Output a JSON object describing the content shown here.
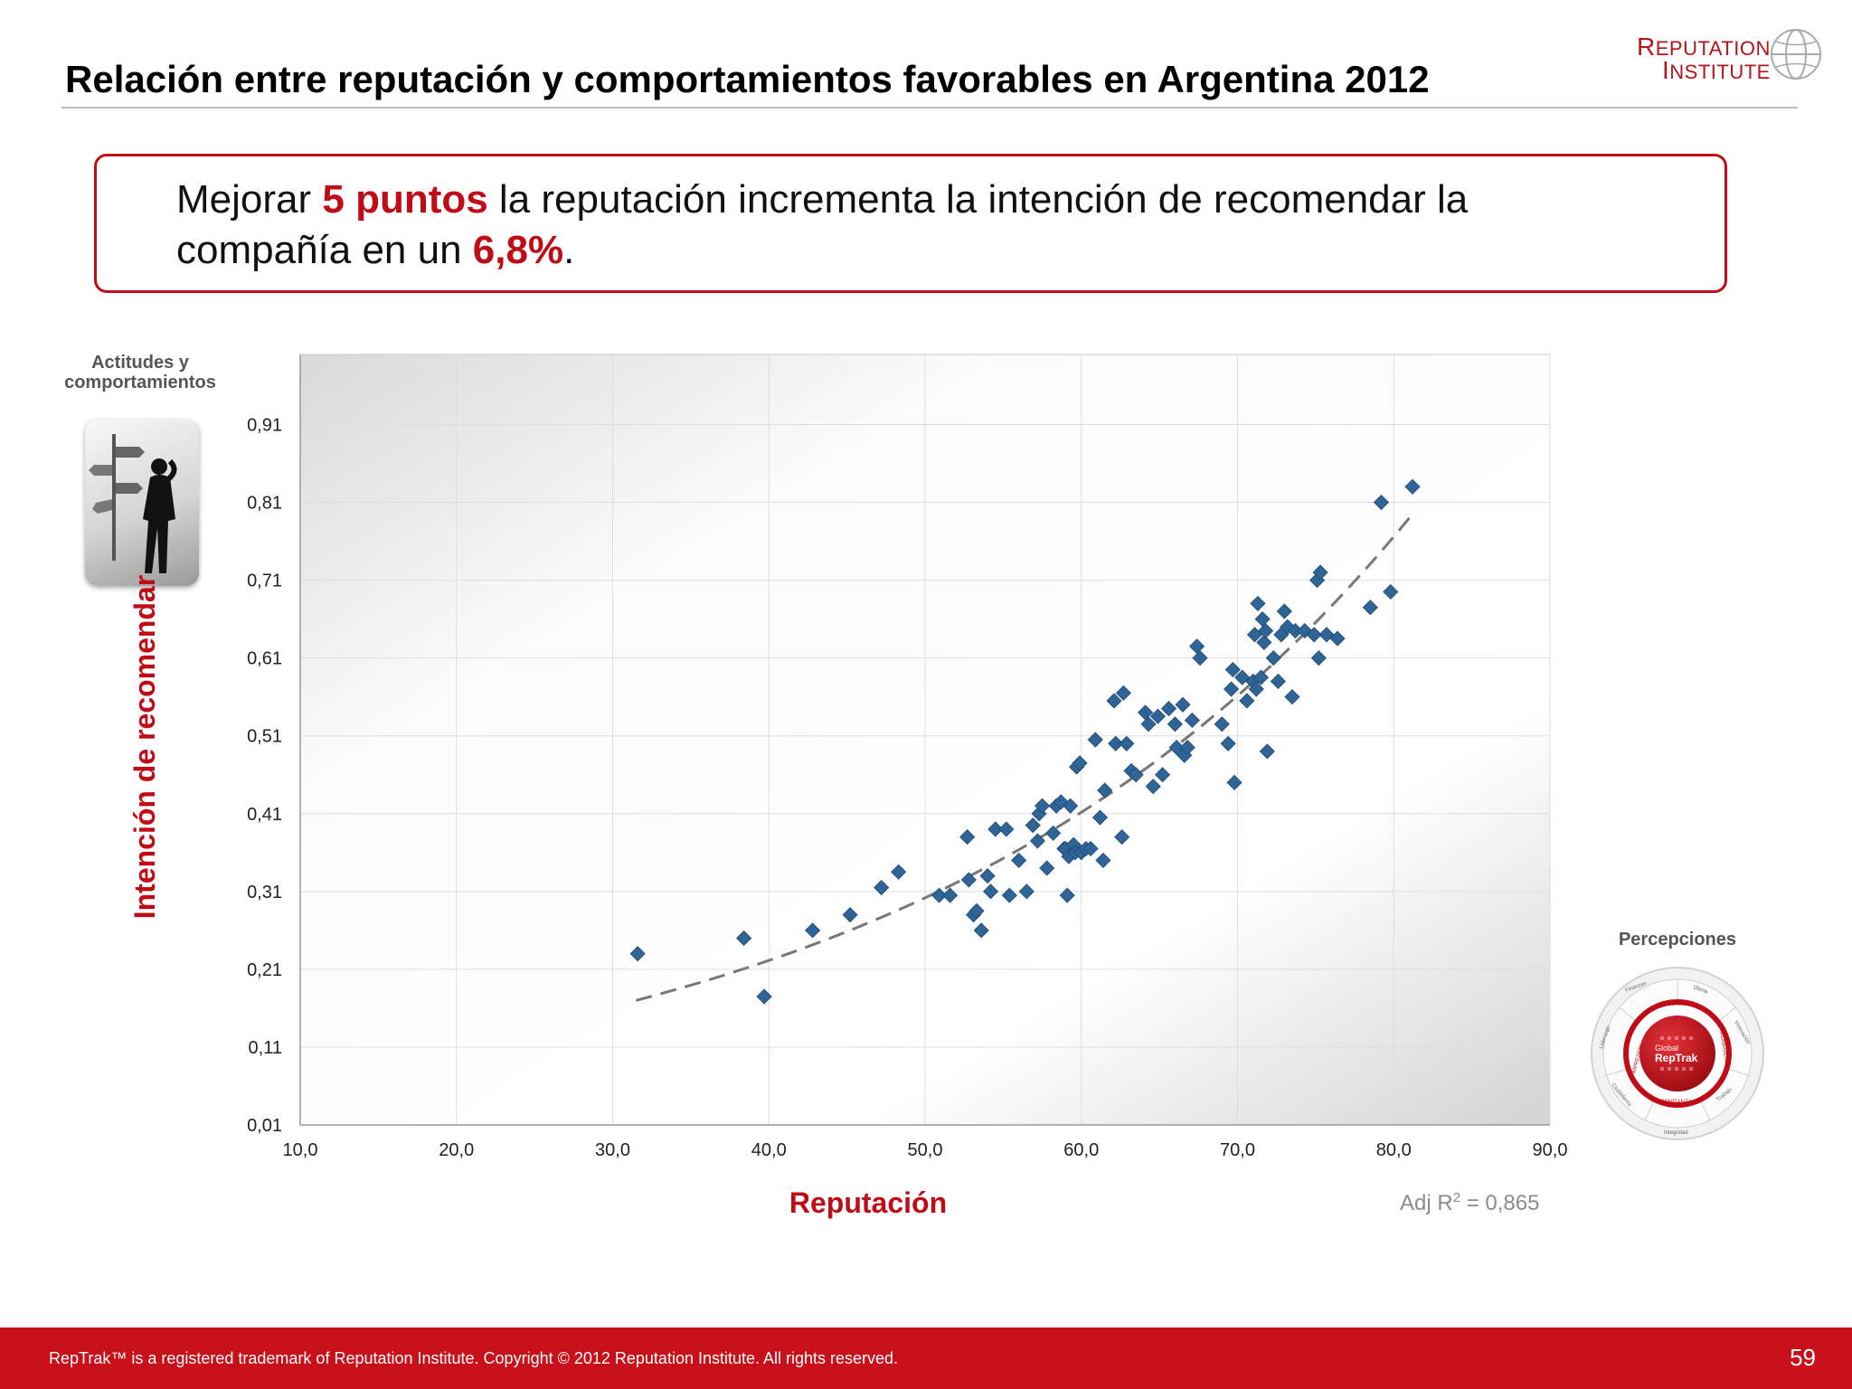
{
  "title": "Relación entre reputación y comportamientos favorables en Argentina 2012",
  "logo": {
    "line1": "Reputation",
    "line2": "Institute"
  },
  "callout": {
    "part1": "Mejorar ",
    "highlight1": "5 puntos",
    "part2": " la reputación incrementa la intención de recomendar la compañía en un ",
    "highlight2": "6,8%",
    "part3": "."
  },
  "attitudes_label": "Actitudes y comportamientos",
  "perceptions_label": "Percepciones",
  "reptrak_wheel": {
    "center_top": "Global",
    "center_bottom": "RepTrak",
    "inner_top": "ESTIMA",
    "inner_left": "IMPRESIÓN",
    "inner_right": "ADMIRACIÓN",
    "inner_bottom": "CONFIANZA",
    "outer_labels": [
      "Finanzas",
      "Oferta",
      "Innovación",
      "Trabajo",
      "Integridad",
      "Ciudadanía",
      "Liderazgo"
    ]
  },
  "adj_r2": {
    "prefix": "Adj R",
    "sup": "2",
    "suffix": " = 0,865"
  },
  "footer": {
    "text": "RepTrak™ is a registered trademark of Reputation Institute. Copyright © 2012 Reputation Institute. All rights reserved.",
    "page": "59"
  },
  "colors": {
    "accent": "#c00c17",
    "footer": "#c8101b",
    "marker": "#2f6497",
    "trend": "#777777"
  },
  "chart_data": {
    "type": "scatter",
    "xlabel": "Reputación",
    "ylabel": "Intención de recomendar",
    "xlim": [
      10,
      90
    ],
    "ylim": [
      0.01,
      1.0
    ],
    "x_ticks": [
      10,
      20,
      30,
      40,
      50,
      60,
      70,
      80,
      90
    ],
    "x_tick_labels": [
      "10,0",
      "20,0",
      "30,0",
      "40,0",
      "50,0",
      "60,0",
      "70,0",
      "80,0",
      "90,0"
    ],
    "y_ticks": [
      0.01,
      0.11,
      0.21,
      0.31,
      0.41,
      0.51,
      0.61,
      0.71,
      0.81,
      0.91
    ],
    "y_tick_labels": [
      "0,01",
      "0,11",
      "0,21",
      "0,31",
      "0,41",
      "0,51",
      "0,61",
      "0,71",
      "0,81",
      "0,91"
    ],
    "grid": true,
    "trendline": {
      "type": "exponential",
      "style": "dashed",
      "x": [
        31.5,
        81.0
      ],
      "y": [
        0.17,
        0.79
      ]
    },
    "points": [
      [
        31.6,
        0.23
      ],
      [
        38.4,
        0.25
      ],
      [
        39.7,
        0.175
      ],
      [
        42.8,
        0.26
      ],
      [
        45.2,
        0.28
      ],
      [
        47.2,
        0.315
      ],
      [
        48.3,
        0.335
      ],
      [
        50.9,
        0.305
      ],
      [
        51.6,
        0.305
      ],
      [
        52.7,
        0.38
      ],
      [
        52.8,
        0.325
      ],
      [
        53.1,
        0.28
      ],
      [
        53.3,
        0.285
      ],
      [
        53.6,
        0.26
      ],
      [
        54.0,
        0.33
      ],
      [
        54.2,
        0.31
      ],
      [
        54.5,
        0.39
      ],
      [
        55.2,
        0.39
      ],
      [
        55.4,
        0.305
      ],
      [
        56.0,
        0.35
      ],
      [
        56.5,
        0.31
      ],
      [
        56.9,
        0.395
      ],
      [
        57.2,
        0.375
      ],
      [
        57.3,
        0.41
      ],
      [
        57.5,
        0.42
      ],
      [
        57.8,
        0.34
      ],
      [
        58.2,
        0.385
      ],
      [
        58.4,
        0.42
      ],
      [
        58.7,
        0.425
      ],
      [
        58.9,
        0.365
      ],
      [
        59.0,
        0.365
      ],
      [
        59.1,
        0.305
      ],
      [
        59.2,
        0.355
      ],
      [
        59.3,
        0.42
      ],
      [
        59.5,
        0.37
      ],
      [
        59.6,
        0.36
      ],
      [
        59.7,
        0.47
      ],
      [
        59.9,
        0.475
      ],
      [
        60.0,
        0.36
      ],
      [
        60.3,
        0.365
      ],
      [
        60.6,
        0.365
      ],
      [
        60.9,
        0.505
      ],
      [
        61.2,
        0.405
      ],
      [
        61.4,
        0.35
      ],
      [
        61.5,
        0.44
      ],
      [
        62.1,
        0.555
      ],
      [
        62.2,
        0.5
      ],
      [
        62.6,
        0.38
      ],
      [
        62.7,
        0.565
      ],
      [
        62.9,
        0.5
      ],
      [
        63.2,
        0.465
      ],
      [
        63.5,
        0.46
      ],
      [
        64.1,
        0.54
      ],
      [
        64.3,
        0.525
      ],
      [
        64.6,
        0.445
      ],
      [
        64.9,
        0.535
      ],
      [
        65.2,
        0.46
      ],
      [
        65.6,
        0.545
      ],
      [
        66.0,
        0.525
      ],
      [
        66.1,
        0.495
      ],
      [
        66.5,
        0.55
      ],
      [
        66.6,
        0.485
      ],
      [
        66.8,
        0.495
      ],
      [
        67.1,
        0.53
      ],
      [
        67.4,
        0.625
      ],
      [
        67.6,
        0.61
      ],
      [
        69.0,
        0.525
      ],
      [
        69.4,
        0.5
      ],
      [
        69.6,
        0.57
      ],
      [
        69.7,
        0.595
      ],
      [
        69.8,
        0.45
      ],
      [
        70.3,
        0.585
      ],
      [
        70.6,
        0.555
      ],
      [
        71.0,
        0.58
      ],
      [
        71.1,
        0.64
      ],
      [
        71.2,
        0.57
      ],
      [
        71.3,
        0.68
      ],
      [
        71.5,
        0.585
      ],
      [
        71.6,
        0.66
      ],
      [
        71.7,
        0.63
      ],
      [
        71.8,
        0.645
      ],
      [
        71.9,
        0.49
      ],
      [
        72.3,
        0.61
      ],
      [
        72.6,
        0.58
      ],
      [
        72.8,
        0.64
      ],
      [
        73.0,
        0.67
      ],
      [
        73.2,
        0.65
      ],
      [
        73.5,
        0.56
      ],
      [
        73.7,
        0.645
      ],
      [
        74.3,
        0.645
      ],
      [
        74.9,
        0.64
      ],
      [
        75.1,
        0.71
      ],
      [
        75.2,
        0.61
      ],
      [
        75.3,
        0.72
      ],
      [
        75.7,
        0.64
      ],
      [
        76.4,
        0.635
      ],
      [
        78.5,
        0.675
      ],
      [
        79.2,
        0.81
      ],
      [
        79.8,
        0.695
      ],
      [
        81.2,
        0.83
      ]
    ]
  }
}
